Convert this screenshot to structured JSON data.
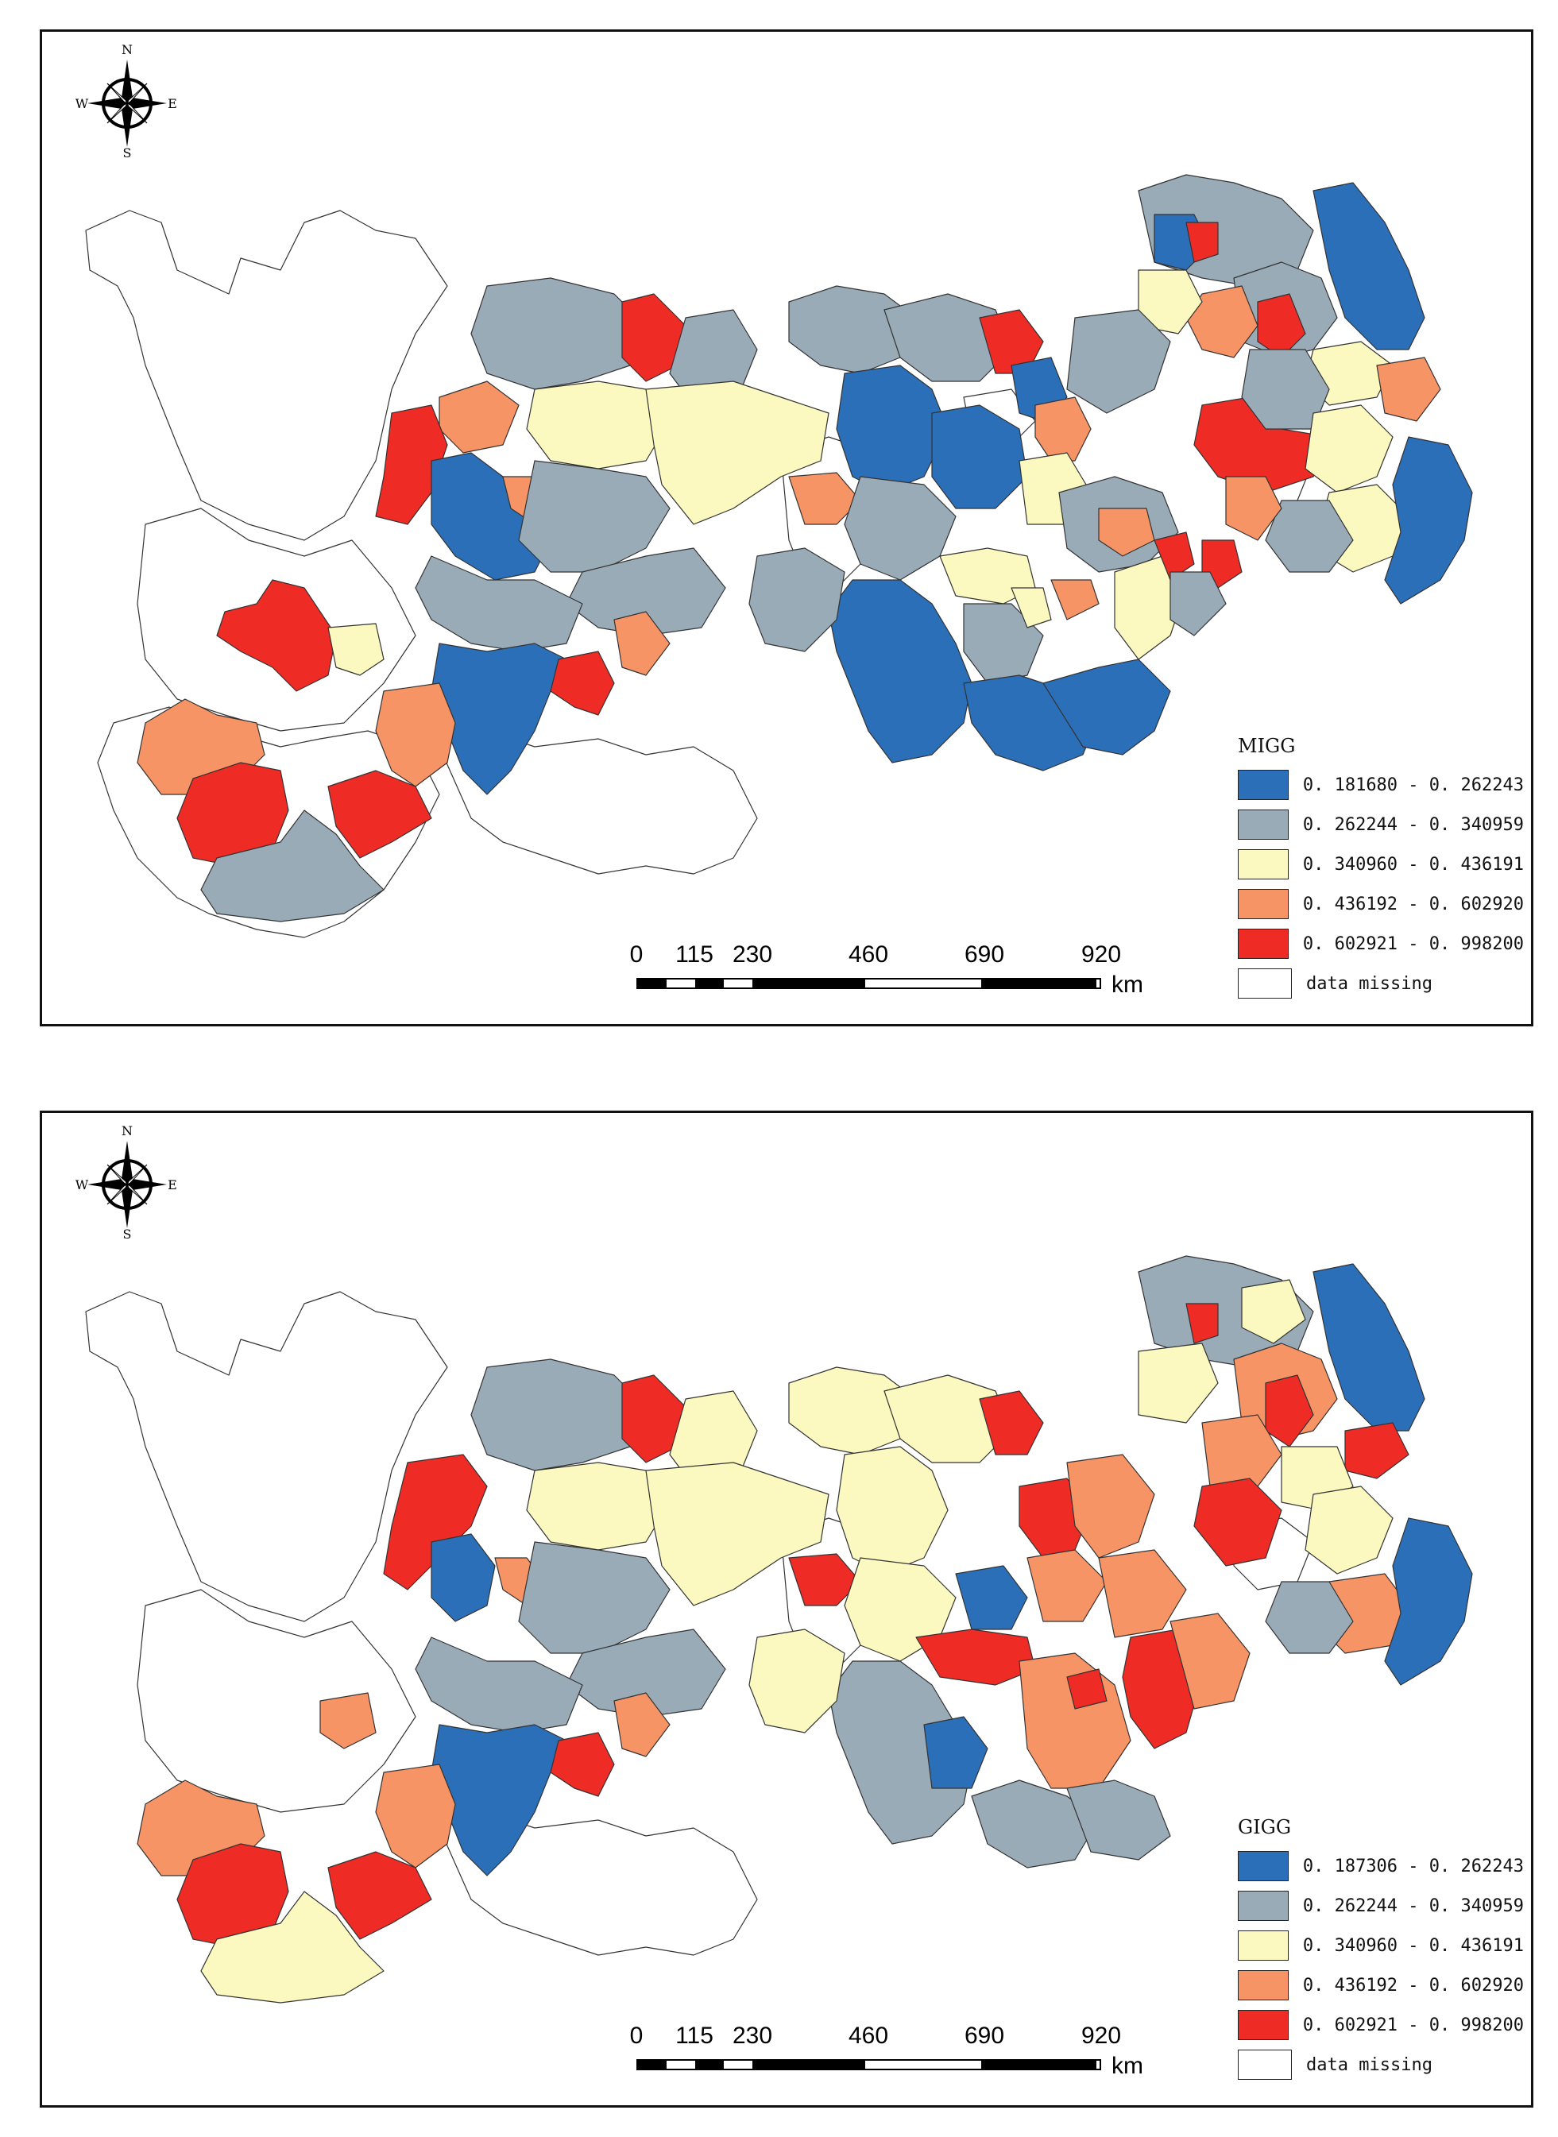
{
  "colors": {
    "class1": "#2a6fb8",
    "class2": "#9aabb8",
    "class3": "#fbf9bf",
    "class4": "#f79466",
    "class5": "#ee2b24",
    "missing": "#ffffff"
  },
  "compass": {
    "n": "N",
    "s": "S",
    "e": "E",
    "w": "W"
  },
  "scale": {
    "ticks": [
      "0",
      "115",
      "230",
      "460",
      "690",
      "920"
    ],
    "unit": "km"
  },
  "maps": [
    {
      "legend_title": "MIGG",
      "classes": [
        {
          "label": "0. 181680 - 0. 262243",
          "color": "#2a6fb8"
        },
        {
          "label": "0. 262244 - 0. 340959",
          "color": "#9aabb8"
        },
        {
          "label": "0. 340960 - 0. 436191",
          "color": "#fbf9bf"
        },
        {
          "label": "0. 436192 - 0. 602920",
          "color": "#f79466"
        },
        {
          "label": "0. 602921 - 0. 998200",
          "color": "#ee2b24"
        },
        {
          "label": "data missing",
          "color": "#ffffff"
        }
      ]
    },
    {
      "legend_title": "GIGG",
      "classes": [
        {
          "label": "0. 187306 - 0. 262243",
          "color": "#2a6fb8"
        },
        {
          "label": "0. 262244 - 0. 340959",
          "color": "#9aabb8"
        },
        {
          "label": "0. 340960 - 0. 436191",
          "color": "#fbf9bf"
        },
        {
          "label": "0. 436192 - 0. 602920",
          "color": "#f79466"
        },
        {
          "label": "0. 602921 - 0. 998200",
          "color": "#ee2b24"
        },
        {
          "label": "data missing",
          "color": "#ffffff"
        }
      ]
    }
  ]
}
